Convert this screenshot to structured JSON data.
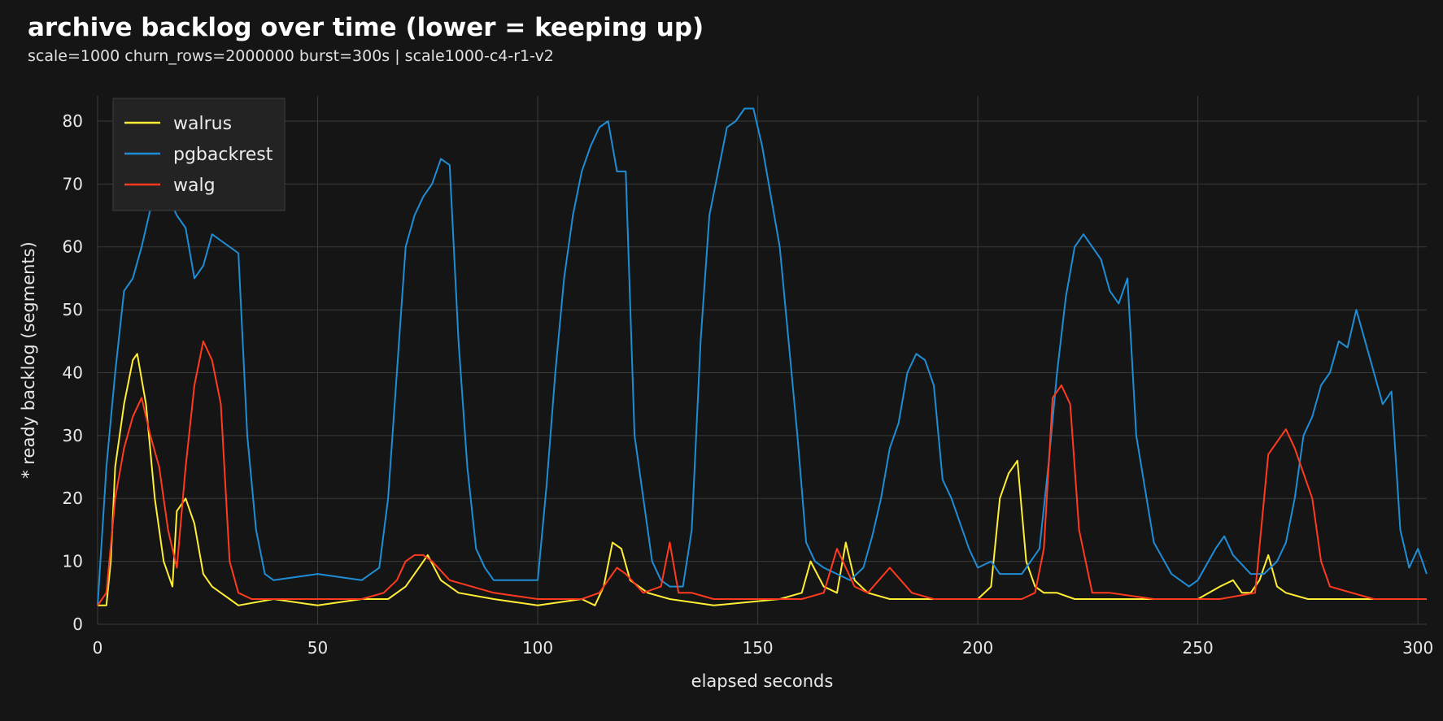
{
  "header": {
    "title": "archive backlog over time (lower = keeping up)",
    "subtitle": "scale=1000 churn_rows=2000000 burst=300s | scale1000-c4-r1-v2"
  },
  "colors": {
    "background": "#151515",
    "grid": "#3a3a3a",
    "walrus": "#ffee33",
    "pgbackrest": "#1f8dd6",
    "walg": "#ff3b1f"
  },
  "chart_data": {
    "type": "line",
    "xlabel": "elapsed seconds",
    "ylabel": "* ready backlog (segments)",
    "xlim": [
      0,
      302
    ],
    "ylim": [
      0,
      84
    ],
    "xticks": [
      0,
      50,
      100,
      150,
      200,
      250,
      300
    ],
    "yticks": [
      0,
      10,
      20,
      30,
      40,
      50,
      60,
      70,
      80
    ],
    "grid": true,
    "legend_position": "top-left",
    "series": [
      {
        "name": "walrus",
        "color": "#ffee33",
        "x": [
          0,
          2,
          3,
          4,
          6,
          8,
          9,
          11,
          13,
          15,
          17,
          18,
          20,
          22,
          24,
          26,
          28,
          30,
          32,
          40,
          50,
          60,
          66,
          70,
          73,
          75,
          78,
          82,
          90,
          100,
          110,
          113,
          115,
          117,
          119,
          121,
          123,
          125,
          130,
          140,
          155,
          160,
          162,
          165,
          168,
          170,
          172,
          175,
          180,
          190,
          200,
          203,
          205,
          207,
          209,
          211,
          213,
          215,
          218,
          222,
          230,
          240,
          250,
          255,
          258,
          260,
          262,
          264,
          266,
          268,
          270,
          275,
          280,
          290,
          302
        ],
        "values": [
          3,
          3,
          10,
          25,
          35,
          42,
          43,
          35,
          20,
          10,
          6,
          18,
          20,
          16,
          8,
          6,
          5,
          4,
          3,
          4,
          3,
          4,
          4,
          6,
          9,
          11,
          7,
          5,
          4,
          3,
          4,
          3,
          6,
          13,
          12,
          7,
          6,
          5,
          4,
          3,
          4,
          5,
          10,
          6,
          5,
          13,
          7,
          5,
          4,
          4,
          4,
          6,
          20,
          24,
          26,
          10,
          6,
          5,
          5,
          4,
          4,
          4,
          4,
          6,
          7,
          5,
          5,
          7,
          11,
          6,
          5,
          4,
          4,
          4,
          4
        ]
      },
      {
        "name": "pgbackrest",
        "color": "#1f8dd6",
        "x": [
          0,
          2,
          4,
          6,
          8,
          10,
          12,
          14,
          16,
          18,
          20,
          22,
          24,
          26,
          28,
          30,
          32,
          34,
          36,
          38,
          40,
          50,
          60,
          64,
          66,
          68,
          70,
          72,
          74,
          76,
          78,
          80,
          82,
          84,
          86,
          88,
          90,
          95,
          100,
          102,
          104,
          106,
          108,
          110,
          112,
          114,
          116,
          118,
          120,
          122,
          124,
          126,
          128,
          130,
          133,
          135,
          137,
          139,
          141,
          143,
          145,
          147,
          149,
          151,
          153,
          155,
          157,
          159,
          161,
          163,
          165,
          168,
          171,
          174,
          176,
          178,
          180,
          182,
          184,
          186,
          188,
          190,
          192,
          194,
          196,
          198,
          200,
          203,
          205,
          210,
          214,
          216,
          218,
          220,
          222,
          224,
          226,
          228,
          230,
          232,
          234,
          236,
          240,
          244,
          248,
          250,
          254,
          256,
          258,
          262,
          265,
          268,
          270,
          272,
          274,
          276,
          278,
          280,
          282,
          284,
          286,
          288,
          290,
          292,
          294,
          296,
          298,
          300,
          302
        ],
        "values": [
          3,
          25,
          40,
          53,
          55,
          60,
          66,
          70,
          68,
          65,
          63,
          55,
          57,
          62,
          61,
          60,
          59,
          30,
          15,
          8,
          7,
          8,
          7,
          9,
          20,
          40,
          60,
          65,
          68,
          70,
          74,
          73,
          45,
          25,
          12,
          9,
          7,
          7,
          7,
          22,
          40,
          55,
          65,
          72,
          76,
          79,
          80,
          72,
          72,
          30,
          20,
          10,
          7,
          6,
          6,
          15,
          45,
          65,
          72,
          79,
          80,
          82,
          82,
          76,
          68,
          60,
          45,
          30,
          13,
          10,
          9,
          8,
          7,
          9,
          14,
          20,
          28,
          32,
          40,
          43,
          42,
          38,
          23,
          20,
          16,
          12,
          9,
          10,
          8,
          8,
          12,
          25,
          40,
          52,
          60,
          62,
          60,
          58,
          53,
          51,
          55,
          30,
          13,
          8,
          6,
          7,
          12,
          14,
          11,
          8,
          8,
          10,
          13,
          20,
          30,
          33,
          38,
          40,
          45,
          44,
          50,
          45,
          40,
          35,
          37,
          15,
          9,
          12,
          8
        ]
      },
      {
        "name": "walg",
        "color": "#ff3b1f",
        "x": [
          0,
          2,
          4,
          6,
          8,
          10,
          12,
          14,
          16,
          18,
          20,
          22,
          24,
          26,
          28,
          30,
          32,
          35,
          40,
          50,
          60,
          65,
          68,
          70,
          72,
          74,
          76,
          80,
          85,
          90,
          100,
          110,
          114,
          116,
          118,
          120,
          124,
          128,
          130,
          132,
          135,
          140,
          150,
          160,
          165,
          168,
          170,
          172,
          175,
          180,
          185,
          190,
          200,
          210,
          213,
          215,
          217,
          219,
          221,
          223,
          226,
          230,
          240,
          255,
          263,
          266,
          268,
          270,
          272,
          274,
          276,
          278,
          280,
          285,
          290,
          302
        ],
        "values": [
          3,
          5,
          20,
          28,
          33,
          36,
          30,
          25,
          15,
          9,
          25,
          38,
          45,
          42,
          35,
          10,
          5,
          4,
          4,
          4,
          4,
          5,
          7,
          10,
          11,
          11,
          10,
          7,
          6,
          5,
          4,
          4,
          5,
          7,
          9,
          8,
          5,
          6,
          13,
          5,
          5,
          4,
          4,
          4,
          5,
          12,
          9,
          6,
          5,
          9,
          5,
          4,
          4,
          4,
          5,
          12,
          36,
          38,
          35,
          15,
          5,
          5,
          4,
          4,
          5,
          27,
          29,
          31,
          28,
          24,
          20,
          10,
          6,
          5,
          4,
          4
        ]
      }
    ]
  }
}
